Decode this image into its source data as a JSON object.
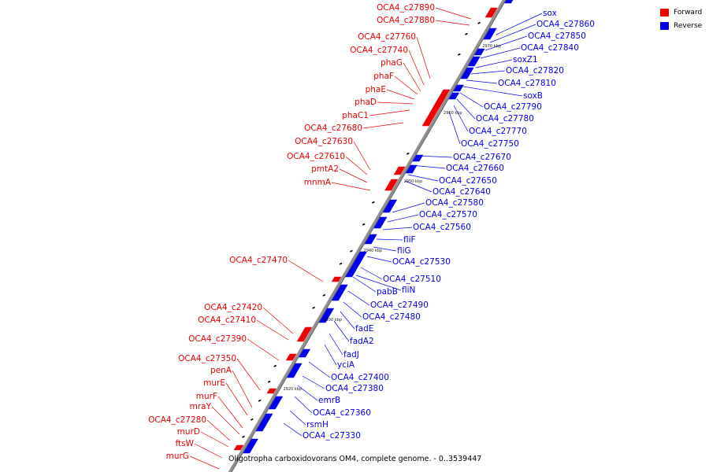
{
  "legend": [
    {
      "label": "Forward",
      "color": "#ee0000"
    },
    {
      "label": "Reverse",
      "color": "#0000ee"
    }
  ],
  "caption": "Oligotropha carboxidovorans OM4, complete genome. - 0..3539447",
  "colors": {
    "forward": "#ee0000",
    "reverse": "#0000ee",
    "axis": "#909090",
    "leader": "#000000"
  },
  "ticks": [
    "2920 kbp",
    "2930 kbp",
    "2940 kbp",
    "2950 kbp",
    "2960 kbp",
    "2970 kbp"
  ],
  "forward_labels": [
    "OCA4_c27890",
    "OCA4_c27880",
    "OCA4_c27760",
    "OCA4_c27740",
    "phaG",
    "phaF",
    "phaE",
    "phaD",
    "phaC1",
    "OCA4_c27680",
    "OCA4_c27630",
    "OCA4_c27610",
    "pmtA2",
    "mnmA",
    "OCA4_c27470",
    "OCA4_c27420",
    "OCA4_c27410",
    "OCA4_c27390",
    "OCA4_c27350",
    "penA",
    "murE",
    "murF",
    "mraY",
    "OCA4_c27280",
    "murD",
    "ftsW",
    "murG"
  ],
  "reverse_labels": [
    "sox",
    "OCA4_c27860",
    "OCA4_c27850",
    "OCA4_c27840",
    "soxZ1",
    "OCA4_c27820",
    "OCA4_c27810",
    "soxB",
    "OCA4_c27790",
    "OCA4_c27780",
    "OCA4_c27770",
    "OCA4_c27750",
    "OCA4_c27670",
    "OCA4_c27660",
    "OCA4_c27650",
    "OCA4_c27640",
    "OCA4_c27580",
    "OCA4_c27570",
    "OCA4_c27560",
    "fliF",
    "fliG",
    "OCA4_c27530",
    "OCA4_c27510",
    "fliN",
    "pabB",
    "OCA4_c27490",
    "OCA4_c27480",
    "fadE",
    "fadA2",
    "fadJ",
    "yciA",
    "OCA4_c27400",
    "OCA4_c27380",
    "emrB",
    "OCA4_c27360",
    "rsmH",
    "OCA4_c27330"
  ]
}
